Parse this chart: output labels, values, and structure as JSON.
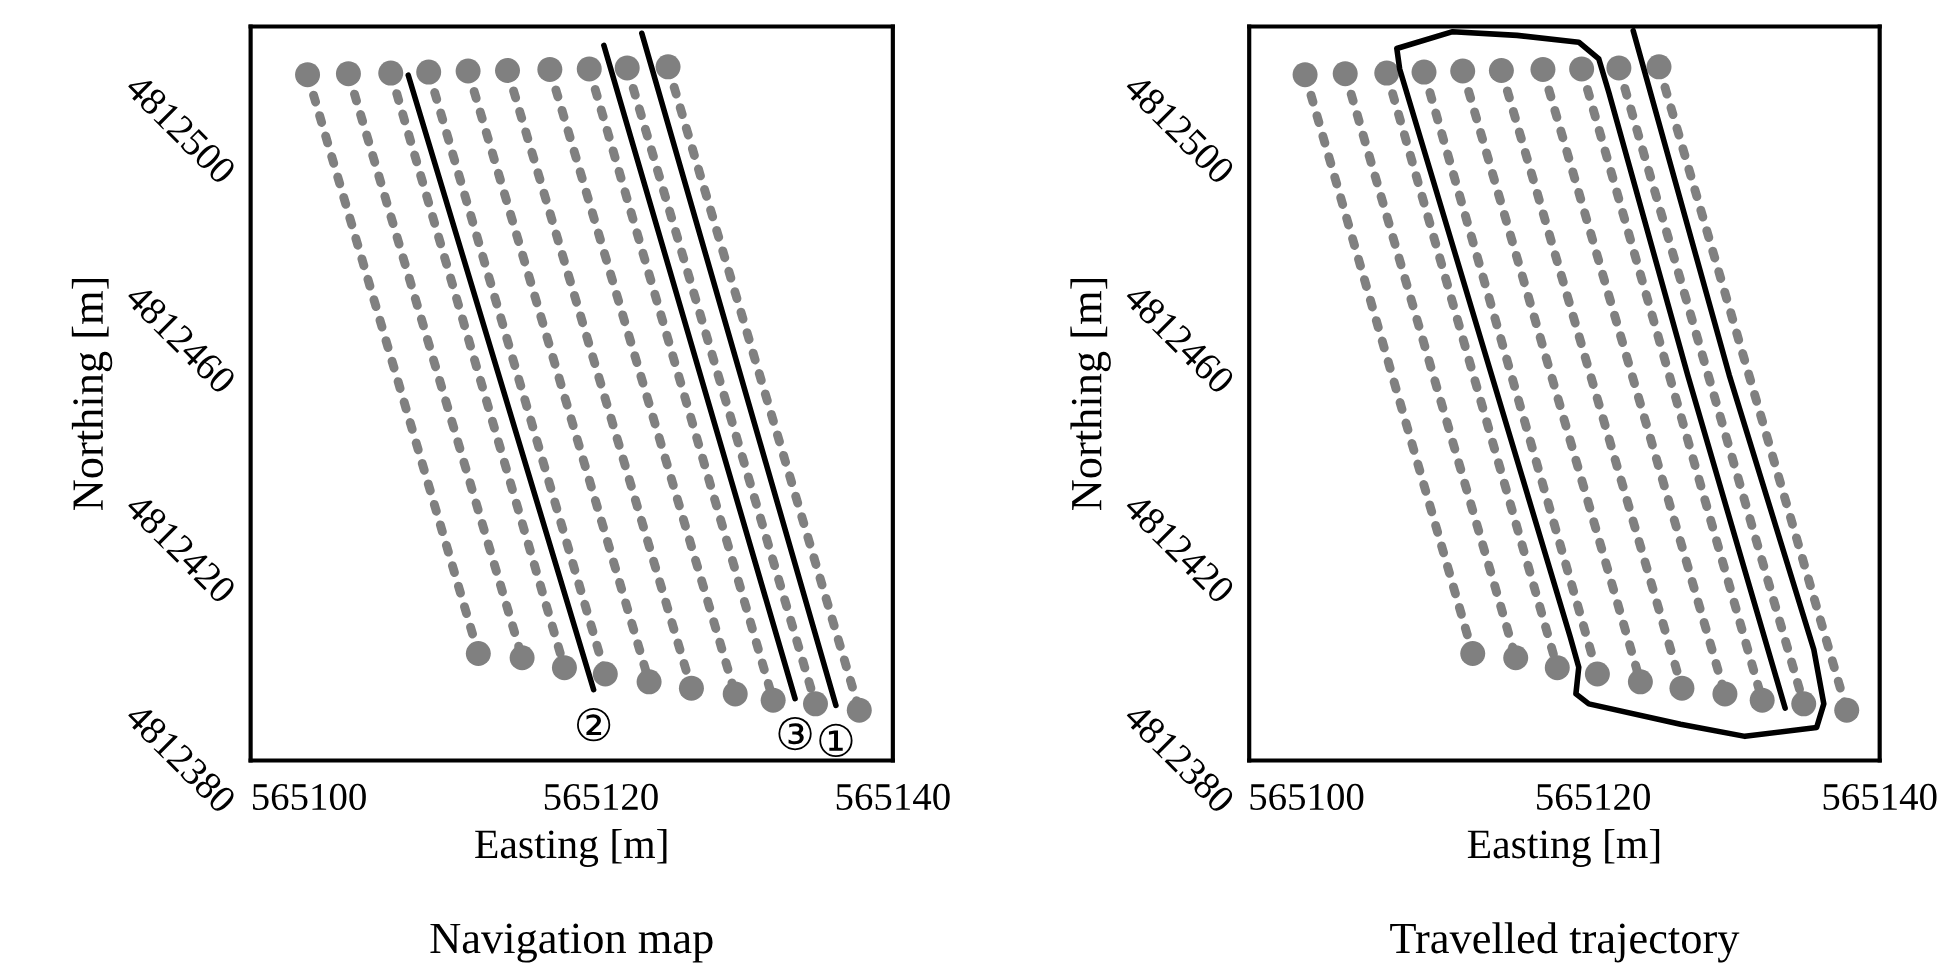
{
  "chart_data": [
    {
      "type": "scatter",
      "title": "Navigation map",
      "xlabel": "Easting [m]",
      "ylabel": "Northing [m]",
      "xlim": [
        565096,
        565140
      ],
      "ylim": [
        4812380,
        4812520
      ],
      "xticks": [
        565100,
        565120,
        565140
      ],
      "yticks": [
        4812380,
        4812420,
        4812460,
        4812500
      ],
      "grid": false,
      "series": [
        {
          "type": "line",
          "line_style": "dotted",
          "color": "#808080",
          "x": [
            565099.9,
            565111.6
          ],
          "values": [
            4812510.8,
            4812400.4
          ]
        },
        {
          "type": "line",
          "line_style": "dotted",
          "color": "#808080",
          "x": [
            565102.7,
            565114.6
          ],
          "values": [
            4812511.0,
            4812399.6
          ]
        },
        {
          "type": "line",
          "line_style": "dotted",
          "color": "#808080",
          "x": [
            565105.6,
            565117.5
          ],
          "values": [
            4812511.1,
            4812397.7
          ]
        },
        {
          "type": "line",
          "line_style": "dotted",
          "color": "#808080",
          "x": [
            565108.2,
            565120.3
          ],
          "values": [
            4812511.3,
            4812396.5
          ]
        },
        {
          "type": "line",
          "line_style": "dotted",
          "color": "#808080",
          "x": [
            565110.9,
            565123.3
          ],
          "values": [
            4812511.5,
            4812395.0
          ]
        },
        {
          "type": "line",
          "line_style": "dotted",
          "color": "#808080",
          "x": [
            565113.6,
            565126.2
          ],
          "values": [
            4812511.6,
            4812393.8
          ]
        },
        {
          "type": "line",
          "line_style": "dotted",
          "color": "#808080",
          "x": [
            565116.5,
            565129.2
          ],
          "values": [
            4812511.8,
            4812392.7
          ]
        },
        {
          "type": "line",
          "line_style": "dotted",
          "color": "#808080",
          "x": [
            565119.2,
            565131.8
          ],
          "values": [
            4812511.9,
            4812391.5
          ]
        },
        {
          "type": "line",
          "line_style": "dotted",
          "color": "#808080",
          "x": [
            565121.8,
            565134.7
          ],
          "values": [
            4812512.1,
            4812390.8
          ]
        },
        {
          "type": "line",
          "line_style": "dotted",
          "color": "#808080",
          "x": [
            565124.6,
            565137.7
          ],
          "values": [
            4812512.3,
            4812389.6
          ]
        },
        {
          "type": "scatter",
          "marker": "circle",
          "color": "#808080",
          "x": [
            565099.9,
            565102.7,
            565105.6,
            565108.2,
            565110.9,
            565113.6,
            565116.5,
            565119.2,
            565121.8,
            565124.6
          ],
          "values": [
            4812510.8,
            4812511.0,
            4812511.1,
            4812511.3,
            4812511.5,
            4812511.6,
            4812511.8,
            4812511.9,
            4812512.1,
            4812512.3
          ]
        },
        {
          "type": "scatter",
          "marker": "circle",
          "color": "#808080",
          "x": [
            565111.6,
            565114.6,
            565117.5,
            565120.3,
            565123.3,
            565126.2,
            565129.2,
            565131.8,
            565134.7,
            565137.7
          ],
          "values": [
            4812400.4,
            4812399.6,
            4812397.7,
            4812396.5,
            4812395.0,
            4812393.8,
            4812392.7,
            4812391.5,
            4812390.8,
            4812389.6
          ]
        },
        {
          "type": "line",
          "line_style": "solid",
          "color": "#000000",
          "x": [
            565106.8,
            565119.5
          ],
          "values": [
            4812510.7,
            4812393.5
          ]
        },
        {
          "type": "line",
          "line_style": "solid",
          "color": "#000000",
          "x": [
            565120.2,
            565133.3
          ],
          "values": [
            4812516.4,
            4812391.8
          ]
        },
        {
          "type": "line",
          "line_style": "solid",
          "color": "#000000",
          "x": [
            565122.8,
            565136.1
          ],
          "values": [
            4812518.7,
            4812390.5
          ]
        }
      ],
      "annotations": [
        {
          "text": "②",
          "x": 565119.5,
          "y": 4812393.5
        },
        {
          "text": "③",
          "x": 565133.3,
          "y": 4812391.8
        },
        {
          "text": "①",
          "x": 565136.1,
          "y": 4812390.5
        }
      ]
    },
    {
      "type": "scatter",
      "title": "Travelled trajectory",
      "xlabel": "Easting [m]",
      "ylabel": "Northing [m]",
      "xlim": [
        565096,
        565140
      ],
      "ylim": [
        4812380,
        4812520
      ],
      "xticks": [
        565100,
        565120,
        565140
      ],
      "yticks": [
        4812380,
        4812420,
        4812460,
        4812500
      ],
      "grid": false,
      "series": [
        {
          "type": "line",
          "line_style": "dotted",
          "color": "#808080",
          "x": [
            565099.9,
            565111.6
          ],
          "values": [
            4812510.8,
            4812400.4
          ]
        },
        {
          "type": "line",
          "line_style": "dotted",
          "color": "#808080",
          "x": [
            565102.7,
            565114.6
          ],
          "values": [
            4812511.0,
            4812399.6
          ]
        },
        {
          "type": "line",
          "line_style": "dotted",
          "color": "#808080",
          "x": [
            565105.6,
            565117.5
          ],
          "values": [
            4812511.1,
            4812397.7
          ]
        },
        {
          "type": "line",
          "line_style": "dotted",
          "color": "#808080",
          "x": [
            565108.2,
            565120.3
          ],
          "values": [
            4812511.3,
            4812396.5
          ]
        },
        {
          "type": "line",
          "line_style": "dotted",
          "color": "#808080",
          "x": [
            565110.9,
            565123.3
          ],
          "values": [
            4812511.5,
            4812395.0
          ]
        },
        {
          "type": "line",
          "line_style": "dotted",
          "color": "#808080",
          "x": [
            565113.6,
            565126.2
          ],
          "values": [
            4812511.6,
            4812393.8
          ]
        },
        {
          "type": "line",
          "line_style": "dotted",
          "color": "#808080",
          "x": [
            565116.5,
            565129.2
          ],
          "values": [
            4812511.8,
            4812392.7
          ]
        },
        {
          "type": "line",
          "line_style": "dotted",
          "color": "#808080",
          "x": [
            565119.2,
            565131.8
          ],
          "values": [
            4812511.9,
            4812391.5
          ]
        },
        {
          "type": "line",
          "line_style": "dotted",
          "color": "#808080",
          "x": [
            565121.8,
            565134.7
          ],
          "values": [
            4812512.1,
            4812390.8
          ]
        },
        {
          "type": "line",
          "line_style": "dotted",
          "color": "#808080",
          "x": [
            565124.6,
            565137.7
          ],
          "values": [
            4812512.3,
            4812389.6
          ]
        },
        {
          "type": "scatter",
          "marker": "circle",
          "color": "#808080",
          "x": [
            565099.9,
            565102.7,
            565105.6,
            565108.2,
            565110.9,
            565113.6,
            565116.5,
            565119.2,
            565121.8,
            565124.6
          ],
          "values": [
            4812510.8,
            4812511.0,
            4812511.1,
            4812511.3,
            4812511.5,
            4812511.6,
            4812511.8,
            4812511.9,
            4812512.1,
            4812512.3
          ]
        },
        {
          "type": "scatter",
          "marker": "circle",
          "color": "#808080",
          "x": [
            565111.6,
            565114.6,
            565117.5,
            565120.3,
            565123.3,
            565126.2,
            565129.2,
            565131.8,
            565134.7,
            565137.7
          ],
          "values": [
            4812400.4,
            4812399.6,
            4812397.7,
            4812396.5,
            4812395.0,
            4812393.8,
            4812392.7,
            4812391.5,
            4812390.8,
            4812389.6
          ]
        },
        {
          "type": "line",
          "line_style": "solid",
          "color": "#000000",
          "x": [
            565122.8,
            565129.5,
            565135.4,
            565136.1,
            565135.6,
            565130.6,
            565126.1,
            565119.7,
            565118.8,
            565119.0,
            565118.4,
            565106.5,
            565106.3,
            565110.2,
            565114.7,
            565119.0,
            565120.4,
            565121.1,
            565126.6,
            565133.4
          ],
          "values": [
            4812519.2,
            4812453.5,
            4812401.2,
            4812390.8,
            4812386.3,
            4812384.6,
            4812386.9,
            4812390.8,
            4812392.7,
            4812397.8,
            4812403.6,
            4812511.9,
            4812515.8,
            4812519.0,
            4812518.3,
            4812517.0,
            4812513.8,
            4812507.4,
            4812453.5,
            4812390.0
          ]
        }
      ]
    }
  ]
}
